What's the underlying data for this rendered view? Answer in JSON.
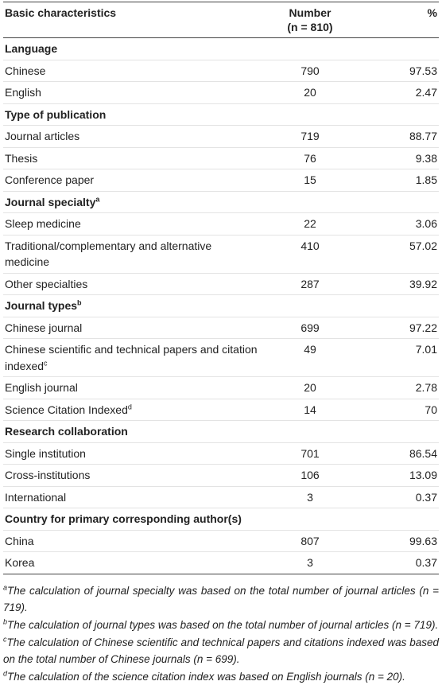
{
  "table": {
    "header": [
      "Basic characteristics",
      "Number",
      "(n = 810)",
      "%"
    ],
    "sections": [
      {
        "title": "Language",
        "rows": [
          {
            "label": "Chinese",
            "number": "790",
            "percent": "97.53"
          },
          {
            "label": "English",
            "number": "20",
            "percent": "2.47"
          }
        ]
      },
      {
        "title": "Type of publication",
        "rows": [
          {
            "label": "Journal articles",
            "number": "719",
            "percent": "88.77"
          },
          {
            "label": "Thesis",
            "number": "76",
            "percent": "9.38"
          },
          {
            "label": "Conference paper",
            "number": "15",
            "percent": "1.85"
          }
        ]
      },
      {
        "title": "Journal specialty",
        "sup": "a",
        "rows": [
          {
            "label": "Sleep medicine",
            "number": "22",
            "percent": "3.06"
          },
          {
            "label": "Traditional/complementary and alternative medicine",
            "number": "410",
            "percent": "57.02"
          },
          {
            "label": "Other specialties",
            "number": "287",
            "percent": "39.92"
          }
        ]
      },
      {
        "title": "Journal types",
        "sup": "b",
        "rows": [
          {
            "label": "Chinese journal",
            "number": "699",
            "percent": "97.22"
          },
          {
            "label": "Chinese scientific and technical papers and citation indexed",
            "sup": "c",
            "number": "49",
            "percent": "7.01"
          },
          {
            "label": "English journal",
            "number": "20",
            "percent": "2.78"
          },
          {
            "label": "Science Citation Indexed",
            "sup": "d",
            "number": "14",
            "percent": "70"
          }
        ]
      },
      {
        "title": "Research collaboration",
        "rows": [
          {
            "label": "Single institution",
            "number": "701",
            "percent": "86.54"
          },
          {
            "label": "Cross-institutions",
            "number": "106",
            "percent": "13.09"
          },
          {
            "label": "International",
            "number": "3",
            "percent": "0.37"
          }
        ]
      },
      {
        "title": "Country for primary corresponding author(s)",
        "rows": [
          {
            "label": "China",
            "number": "807",
            "percent": "99.63"
          },
          {
            "label": "Korea",
            "number": "3",
            "percent": "0.37"
          }
        ]
      }
    ]
  },
  "footnotes": [
    {
      "sup": "a",
      "text": "The calculation of journal specialty was based on the total number of journal articles (n = 719)."
    },
    {
      "sup": "b",
      "text": "The calculation of journal types was based on the total number of journal articles (n = 719)."
    },
    {
      "sup": "c",
      "text": "The calculation of Chinese scientific and technical papers and citations indexed was based on the total number of Chinese journals (n = 699)."
    },
    {
      "sup": "d",
      "text": "The calculation of the science citation index was based on English journals (n = 20)."
    }
  ]
}
